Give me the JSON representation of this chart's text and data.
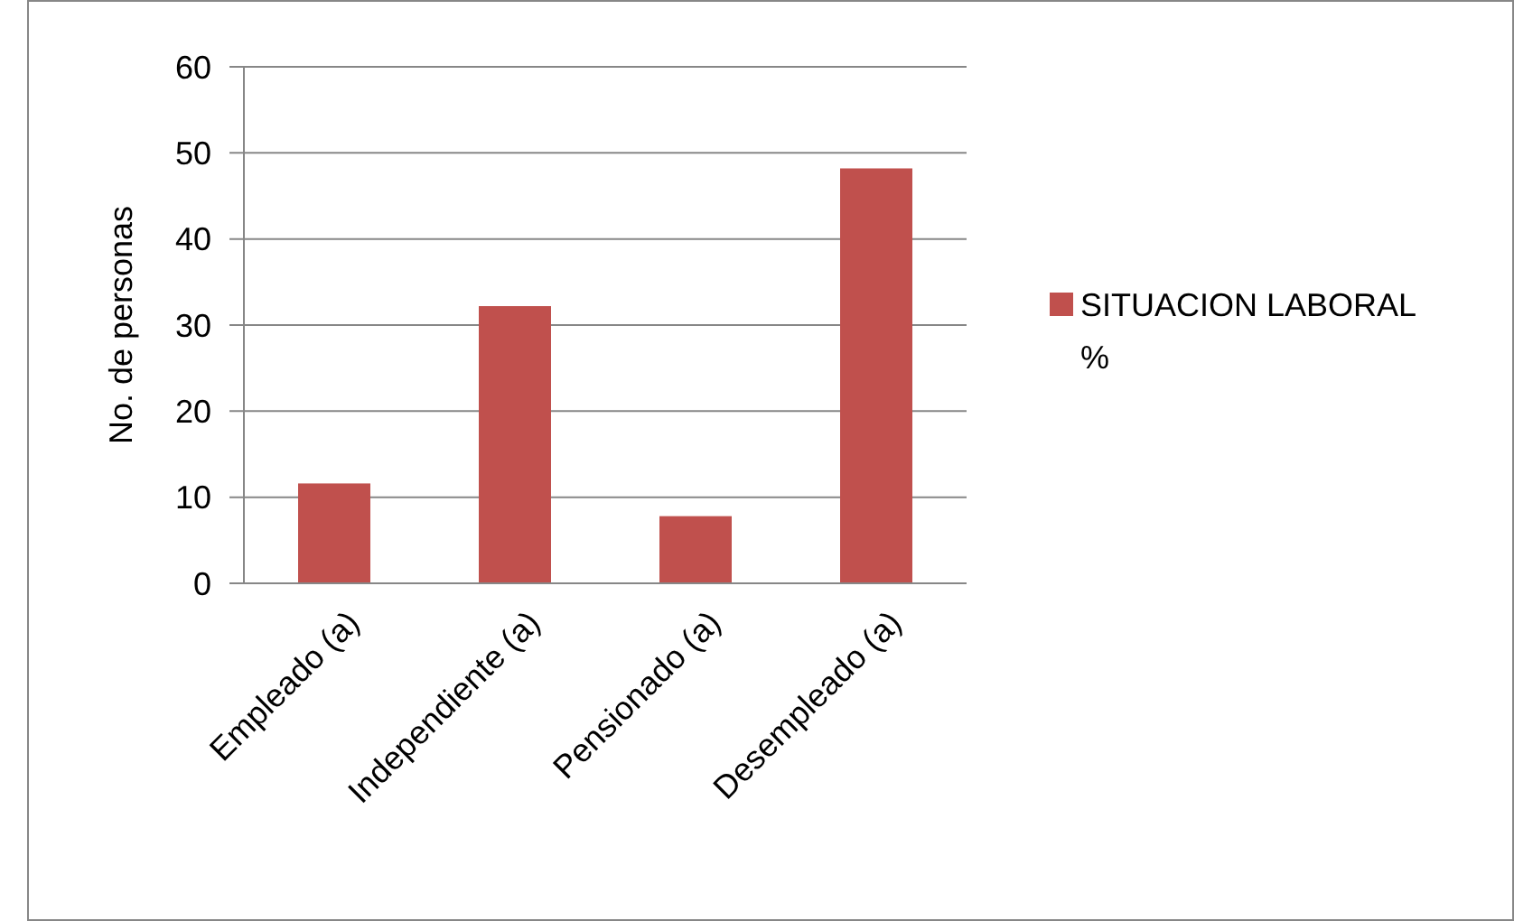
{
  "chart_data": {
    "type": "bar",
    "ylabel": "No. de personas",
    "categories": [
      "Empleado (a)",
      "Independiente (a)",
      "Pensionado (a)",
      "Desempleado (a)"
    ],
    "series": [
      {
        "name": "SITUACION LABORAL %",
        "color": "#c0504d",
        "values": [
          11.6,
          32.2,
          7.8,
          48.2
        ]
      }
    ],
    "ylim": [
      0,
      60
    ],
    "yticks": [
      0,
      10,
      20,
      30,
      40,
      50,
      60
    ],
    "grid": "y",
    "legend": "right"
  }
}
